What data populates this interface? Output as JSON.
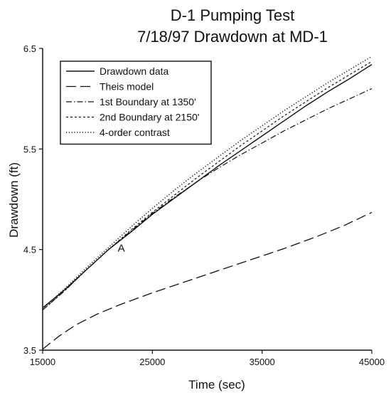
{
  "chart_data": {
    "type": "line",
    "title": [
      "D-1 Pumping Test",
      "7/18/97 Drawdown at MD-1"
    ],
    "xlabel": "Time (sec)",
    "ylabel": "Drawdown (ft)",
    "xlim": [
      15000,
      45000
    ],
    "ylim": [
      3.5,
      6.5
    ],
    "xticks": [
      15000,
      25000,
      35000,
      45000
    ],
    "yticks": [
      3.5,
      4.5,
      5.5,
      6.5
    ],
    "grid": false,
    "legend": "top-left",
    "annotations": [
      {
        "text": "A",
        "x": 22300,
        "y": 4.53
      }
    ],
    "series": [
      {
        "name": "Drawdown data",
        "style": "solid",
        "x": [
          15000,
          17000,
          19000,
          21000,
          23000,
          25000,
          27000,
          29000,
          31000,
          33000,
          35000,
          37000,
          39000,
          41000,
          43000,
          45000
        ],
        "y": [
          3.92,
          4.1,
          4.3,
          4.5,
          4.67,
          4.85,
          5.01,
          5.17,
          5.33,
          5.48,
          5.63,
          5.78,
          5.93,
          6.07,
          6.2,
          6.34
        ]
      },
      {
        "name": "Theis model",
        "style": "longdash",
        "x": [
          15000,
          16500,
          18000,
          20000,
          22000,
          25000,
          28000,
          31000,
          34000,
          37000,
          40000,
          42500,
          45000
        ],
        "y": [
          3.51,
          3.64,
          3.75,
          3.86,
          3.95,
          4.07,
          4.18,
          4.29,
          4.4,
          4.51,
          4.63,
          4.74,
          4.87
        ]
      },
      {
        "name": "1st Boundary at 1350'",
        "style": "dashdot",
        "x": [
          15000,
          17000,
          19000,
          21000,
          23000,
          25000,
          27000,
          29000,
          31000,
          33000,
          35000,
          37000,
          39000,
          41000,
          43000,
          45000
        ],
        "y": [
          3.9,
          4.09,
          4.3,
          4.5,
          4.68,
          4.86,
          5.02,
          5.17,
          5.31,
          5.44,
          5.56,
          5.68,
          5.79,
          5.9,
          6.0,
          6.1
        ]
      },
      {
        "name": "2nd Boundary at 2150'",
        "style": "dashed",
        "x": [
          15000,
          17000,
          19000,
          21000,
          23000,
          25000,
          27000,
          29000,
          31000,
          33000,
          35000,
          37000,
          39000,
          41000,
          43000,
          45000
        ],
        "y": [
          3.9,
          4.09,
          4.3,
          4.5,
          4.69,
          4.87,
          5.04,
          5.21,
          5.37,
          5.53,
          5.68,
          5.83,
          5.97,
          6.11,
          6.24,
          6.37
        ]
      },
      {
        "name": "4-order contrast",
        "style": "dotted",
        "x": [
          15000,
          17000,
          19000,
          21000,
          23000,
          25000,
          27000,
          29000,
          31000,
          33000,
          35000,
          37000,
          39000,
          41000,
          43000,
          45000
        ],
        "y": [
          3.91,
          4.11,
          4.32,
          4.52,
          4.72,
          4.91,
          5.09,
          5.26,
          5.42,
          5.58,
          5.73,
          5.88,
          6.02,
          6.16,
          6.29,
          6.42
        ]
      }
    ]
  }
}
